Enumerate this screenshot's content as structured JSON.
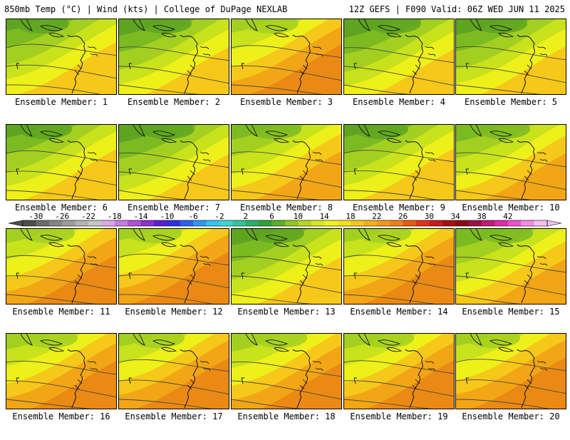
{
  "header": {
    "left": "850mb Temp (°C) | Wind (kts) | College of DuPage NEXLAB",
    "right": "12Z GEFS | F090 Valid: 06Z WED JUN 11 2025"
  },
  "members": [
    {
      "label": "Ensemble Member: 1",
      "scheme": "cool"
    },
    {
      "label": "Ensemble Member: 2",
      "scheme": "cool"
    },
    {
      "label": "Ensemble Member: 3",
      "scheme": "warm"
    },
    {
      "label": "Ensemble Member: 4",
      "scheme": "cool"
    },
    {
      "label": "Ensemble Member: 5",
      "scheme": "cool"
    },
    {
      "label": "Ensemble Member: 6",
      "scheme": "cool"
    },
    {
      "label": "Ensemble Member: 7",
      "scheme": "cool"
    },
    {
      "label": "Ensemble Member: 8",
      "scheme": "mid"
    },
    {
      "label": "Ensemble Member: 9",
      "scheme": "cool"
    },
    {
      "label": "Ensemble Member: 10",
      "scheme": "mid"
    },
    {
      "label": "Ensemble Member: 11",
      "scheme": "warm"
    },
    {
      "label": "Ensemble Member: 12",
      "scheme": "warm"
    },
    {
      "label": "Ensemble Member: 13",
      "scheme": "cool"
    },
    {
      "label": "Ensemble Member: 14",
      "scheme": "warm"
    },
    {
      "label": "Ensemble Member: 15",
      "scheme": "mid"
    },
    {
      "label": "Ensemble Member: 16",
      "scheme": "warm"
    },
    {
      "label": "Ensemble Member: 17",
      "scheme": "warm"
    },
    {
      "label": "Ensemble Member: 18",
      "scheme": "warm"
    },
    {
      "label": "Ensemble Member: 19",
      "scheme": "warm"
    },
    {
      "label": "Ensemble Member: 20",
      "scheme": "warm"
    }
  ],
  "colorbar": {
    "labels": [
      "-30",
      "-26",
      "-22",
      "-18",
      "-14",
      "-10",
      "-6",
      "-2",
      "2",
      "6",
      "10",
      "14",
      "18",
      "22",
      "26",
      "30",
      "34",
      "38",
      "42"
    ],
    "colors": [
      "#4d4d4d",
      "#6b6b6b",
      "#858585",
      "#9c9c9c",
      "#b2b2b2",
      "#c6c6c6",
      "#d9a9e6",
      "#c77de0",
      "#b050d8",
      "#8e2fd1",
      "#5b1fd0",
      "#2d2fe0",
      "#2d62f0",
      "#2d9af5",
      "#33c4f2",
      "#3ad6d0",
      "#33c49a",
      "#2ab06a",
      "#2fa03a",
      "#5ab02a",
      "#8cc824",
      "#b4d820",
      "#d8e81e",
      "#f2f21e",
      "#f7e01c",
      "#f7c81a",
      "#f5b018",
      "#f29a16",
      "#ee8014",
      "#ea5a12",
      "#e4301a",
      "#cc1a1a",
      "#a81010",
      "#8a0a18",
      "#9c1048",
      "#c21a78",
      "#e02aa8",
      "#f050d0",
      "#f68be6",
      "#f8c0f0"
    ]
  },
  "palette": {
    "cool": [
      "#5fa421",
      "#7cba22",
      "#a3d020",
      "#c8e21c",
      "#eef01a",
      "#f6c81a"
    ],
    "mid": [
      "#7cba22",
      "#a3d020",
      "#c8e21c",
      "#eef01a",
      "#f6c81a",
      "#f2a616"
    ],
    "warm": [
      "#a3d020",
      "#c8e21c",
      "#eef01a",
      "#f6c81a",
      "#f2a616",
      "#ea8a14"
    ]
  }
}
